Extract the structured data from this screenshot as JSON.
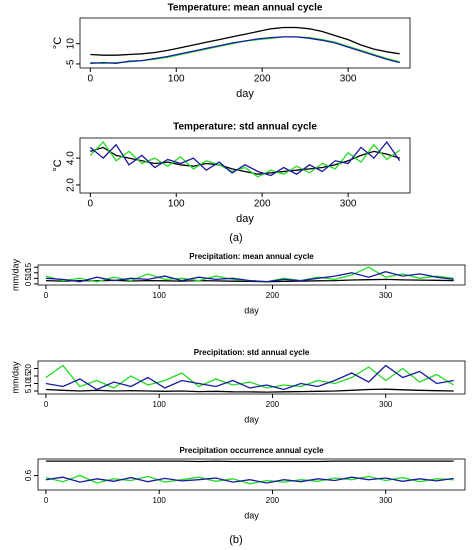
{
  "chart_data": [
    {
      "type": "line",
      "title": "Temperature: mean annual cycle",
      "xlabel": "day",
      "ylabel": "°C",
      "x": [
        0,
        15,
        30,
        45,
        60,
        75,
        90,
        105,
        120,
        135,
        150,
        165,
        180,
        195,
        210,
        225,
        240,
        255,
        270,
        285,
        300,
        315,
        330,
        345,
        360
      ],
      "xlim": [
        -12,
        372
      ],
      "xticks": [
        0,
        100,
        200,
        300
      ],
      "ylim": [
        -8,
        29
      ],
      "yticks": [
        -5,
        10
      ],
      "series": [
        {
          "color": "#000000",
          "values": [
            2,
            1.5,
            1.5,
            2,
            2.5,
            3.5,
            5,
            7,
            9,
            11,
            13,
            15,
            17,
            19,
            21,
            22,
            22,
            21,
            19,
            16,
            13,
            9,
            6,
            4,
            2.5
          ]
        },
        {
          "color": "#22dd22",
          "values": [
            -4,
            -4.5,
            -4,
            -3.5,
            -2.5,
            -1.5,
            0,
            2,
            4,
            6,
            8,
            10,
            12,
            13,
            14,
            15,
            15,
            14.5,
            13,
            11,
            8,
            5,
            2,
            -1,
            -3.5
          ]
        },
        {
          "color": "#1a1aa0",
          "values": [
            -4.5,
            -4,
            -4.5,
            -3,
            -2.5,
            -1,
            0.5,
            2.5,
            4.5,
            6.5,
            8.5,
            10.5,
            12,
            13.5,
            14.5,
            15,
            15,
            14,
            12.5,
            10.5,
            7.5,
            4.5,
            1.5,
            -1.5,
            -4
          ]
        }
      ]
    },
    {
      "type": "line",
      "title": "Temperature: std annual cycle",
      "xlabel": "day",
      "ylabel": "°C",
      "x": [
        0,
        15,
        30,
        45,
        60,
        75,
        90,
        105,
        120,
        135,
        150,
        165,
        180,
        195,
        210,
        225,
        240,
        255,
        270,
        285,
        300,
        315,
        330,
        345,
        360
      ],
      "xlim": [
        -12,
        372
      ],
      "xticks": [
        0,
        100,
        200,
        300
      ],
      "ylim": [
        1.4,
        5.5
      ],
      "yticks": [
        {
          "value": 2,
          "label": "2.0"
        },
        {
          "value": 4,
          "label": "4.0"
        }
      ],
      "series": [
        {
          "color": "#000000",
          "values": [
            4.5,
            4.8,
            4.2,
            4.0,
            3.8,
            3.6,
            3.7,
            3.5,
            3.4,
            3.6,
            3.5,
            3.2,
            3.0,
            2.8,
            2.9,
            3.0,
            3.1,
            3.2,
            3.3,
            3.5,
            3.8,
            4.2,
            4.5,
            4.3,
            4.0
          ]
        },
        {
          "color": "#22dd22",
          "values": [
            4.2,
            5.2,
            3.8,
            4.5,
            3.6,
            4.0,
            3.4,
            4.1,
            3.2,
            3.8,
            3.5,
            3.0,
            3.3,
            2.6,
            3.1,
            2.8,
            3.4,
            2.9,
            3.6,
            3.2,
            4.4,
            3.7,
            5.0,
            3.9,
            4.6
          ]
        },
        {
          "color": "#1a1aa0",
          "values": [
            4.8,
            4.0,
            5.0,
            3.5,
            4.2,
            3.3,
            3.9,
            3.6,
            4.0,
            3.1,
            3.7,
            2.9,
            3.5,
            3.0,
            2.7,
            3.3,
            2.8,
            3.5,
            3.0,
            3.8,
            3.6,
            4.8,
            4.0,
            5.2,
            3.8
          ]
        }
      ]
    },
    {
      "type": "line",
      "title": "Precipitation: mean annual cycle",
      "xlabel": "day",
      "ylabel": "mm/day",
      "x": [
        0,
        15,
        30,
        45,
        60,
        75,
        90,
        105,
        120,
        135,
        150,
        165,
        180,
        195,
        210,
        225,
        240,
        255,
        270,
        285,
        300,
        315,
        330,
        345,
        360
      ],
      "xlim": [
        -7,
        370
      ],
      "xticks": [
        0,
        100,
        200,
        300
      ],
      "ylim": [
        -1,
        17
      ],
      "yticks": [
        0,
        5,
        10,
        15
      ],
      "series": [
        {
          "color": "#000000",
          "values": [
            3,
            2.5,
            3,
            2.8,
            3.2,
            2.6,
            3,
            2.8,
            2.5,
            3,
            2.7,
            2.4,
            2.2,
            2,
            2.3,
            2.5,
            2.8,
            3,
            3.5,
            3.8,
            4,
            3.6,
            3.4,
            3.2,
            3
          ]
        },
        {
          "color": "#22dd22",
          "values": [
            7,
            3,
            5,
            2,
            6,
            3,
            9,
            4,
            5,
            3,
            7,
            4,
            3,
            2,
            5,
            3,
            6,
            4,
            8,
            15,
            6,
            9,
            5,
            7,
            5
          ]
        },
        {
          "color": "#1a1aa0",
          "values": [
            5,
            4,
            2,
            6,
            3,
            5,
            4,
            7,
            3,
            6,
            4,
            5,
            3,
            2,
            4,
            3,
            5,
            7,
            10,
            6,
            11,
            7,
            9,
            6,
            4
          ]
        }
      ]
    },
    {
      "type": "line",
      "title": "Precipitation: std annual cycle",
      "xlabel": "day",
      "ylabel": "mm/day",
      "x": [
        0,
        15,
        30,
        45,
        60,
        75,
        90,
        105,
        120,
        135,
        150,
        165,
        180,
        195,
        210,
        225,
        240,
        255,
        270,
        285,
        300,
        315,
        330,
        345,
        360
      ],
      "xlim": [
        -7,
        370
      ],
      "xticks": [
        0,
        100,
        200,
        300
      ],
      "ylim": [
        3,
        25
      ],
      "yticks": [
        5,
        10,
        15,
        20
      ],
      "series": [
        {
          "color": "#000000",
          "values": [
            6,
            5.5,
            5,
            5.5,
            5,
            5.2,
            5,
            4.8,
            5,
            4.6,
            4.8,
            4.5,
            4.4,
            4.3,
            4.5,
            4.6,
            4.8,
            5,
            5.5,
            6,
            6.2,
            5.8,
            5.5,
            5.2,
            5
          ]
        },
        {
          "color": "#22dd22",
          "values": [
            14,
            22,
            8,
            12,
            7,
            15,
            9,
            12,
            17,
            8,
            13,
            9,
            11,
            7,
            9,
            8,
            12,
            10,
            14,
            21,
            12,
            20,
            11,
            16,
            9
          ]
        },
        {
          "color": "#1a1aa0",
          "values": [
            10,
            8,
            13,
            6,
            11,
            8,
            14,
            7,
            12,
            10,
            8,
            12,
            7,
            9,
            6,
            10,
            8,
            12,
            17,
            11,
            22,
            14,
            18,
            10,
            12
          ]
        }
      ]
    },
    {
      "type": "line",
      "title": "Precipitation occurrence annual cycle",
      "xlabel": "day",
      "x": [
        0,
        15,
        30,
        45,
        60,
        75,
        90,
        105,
        120,
        135,
        150,
        165,
        180,
        195,
        210,
        225,
        240,
        255,
        270,
        285,
        300,
        315,
        330,
        345,
        360
      ],
      "xlim": [
        -7,
        370
      ],
      "xticks": [
        0,
        100,
        200,
        300
      ],
      "ylim": [
        0.25,
        1.0
      ],
      "yticks": [
        0.6
      ],
      "series": [
        {
          "color": "#000000",
          "values": [
            0.95,
            0.95,
            0.95,
            0.95,
            0.95,
            0.95,
            0.95,
            0.95,
            0.95,
            0.94,
            0.95,
            0.94,
            0.94,
            0.94,
            0.94,
            0.94,
            0.94,
            0.95,
            0.95,
            0.95,
            0.95,
            0.95,
            0.95,
            0.95,
            0.95
          ]
        },
        {
          "color": "#22dd22",
          "values": [
            0.55,
            0.45,
            0.6,
            0.42,
            0.52,
            0.48,
            0.58,
            0.44,
            0.5,
            0.56,
            0.46,
            0.52,
            0.4,
            0.48,
            0.44,
            0.5,
            0.46,
            0.54,
            0.5,
            0.58,
            0.48,
            0.55,
            0.45,
            0.52,
            0.5
          ]
        },
        {
          "color": "#1a1aa0",
          "values": [
            0.5,
            0.56,
            0.44,
            0.52,
            0.46,
            0.55,
            0.45,
            0.53,
            0.47,
            0.5,
            0.54,
            0.44,
            0.5,
            0.42,
            0.5,
            0.45,
            0.52,
            0.48,
            0.56,
            0.5,
            0.54,
            0.46,
            0.52,
            0.47,
            0.53
          ]
        }
      ]
    }
  ],
  "captions": [
    "(a)",
    "(b)"
  ]
}
